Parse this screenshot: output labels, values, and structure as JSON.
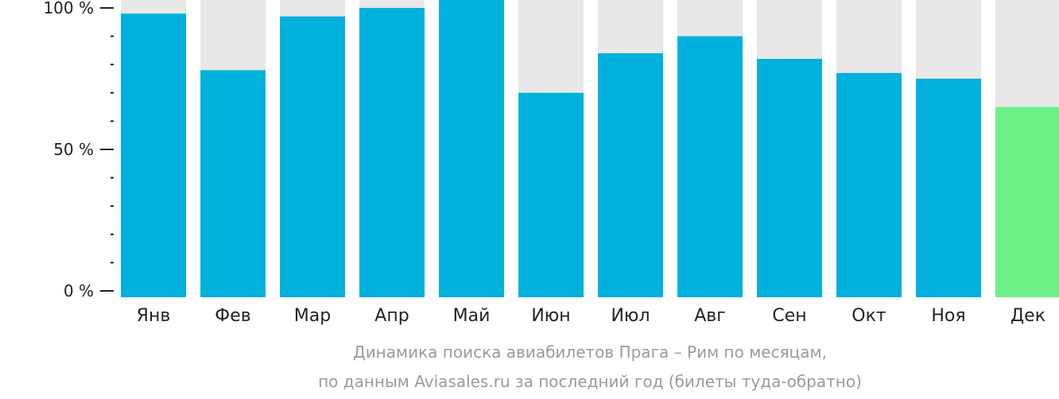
{
  "chart_data": {
    "type": "bar",
    "categories": [
      "Янв",
      "Фев",
      "Мар",
      "Апр",
      "Май",
      "Июн",
      "Июл",
      "Авг",
      "Сен",
      "Окт",
      "Ноя",
      "Дек"
    ],
    "values": [
      98,
      78,
      97,
      100,
      103,
      70,
      84,
      90,
      82,
      77,
      75,
      65
    ],
    "ylim": [
      0,
      100
    ],
    "y_ticks": [
      {
        "value": 0,
        "label": "0 %"
      },
      {
        "value": 50,
        "label": "50 %"
      },
      {
        "value": 100,
        "label": "100 %"
      }
    ],
    "y_minor_step": 10,
    "highlight_index": 11,
    "grid": false,
    "legend": "none"
  },
  "caption": {
    "line1": "Динамика поиска авиабилетов Прага – Рим по месяцам,",
    "line2": "по данным Aviasales.ru за последний год (билеты туда-обратно)"
  },
  "colors": {
    "bar": "#00b0dd",
    "bar_highlight": "#6df088",
    "track": "#e8e8e8",
    "axis": "#222222",
    "caption": "#9a9a9a"
  }
}
